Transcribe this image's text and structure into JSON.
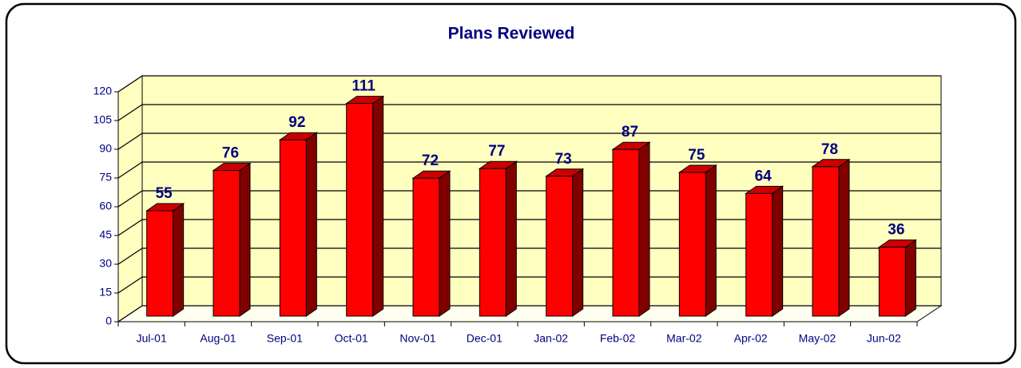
{
  "chart_data": {
    "type": "bar",
    "title": "Plans Reviewed",
    "categories": [
      "Jul-01",
      "Aug-01",
      "Sep-01",
      "Oct-01",
      "Nov-01",
      "Dec-01",
      "Jan-02",
      "Feb-02",
      "Mar-02",
      "Apr-02",
      "May-02",
      "Jun-02"
    ],
    "values": [
      55,
      76,
      92,
      111,
      72,
      77,
      73,
      87,
      75,
      64,
      78,
      36
    ],
    "color": "#ff0000",
    "ylim": [
      0,
      120
    ],
    "yticks": [
      0,
      15,
      30,
      45,
      60,
      75,
      90,
      105,
      120
    ],
    "grid": true
  }
}
